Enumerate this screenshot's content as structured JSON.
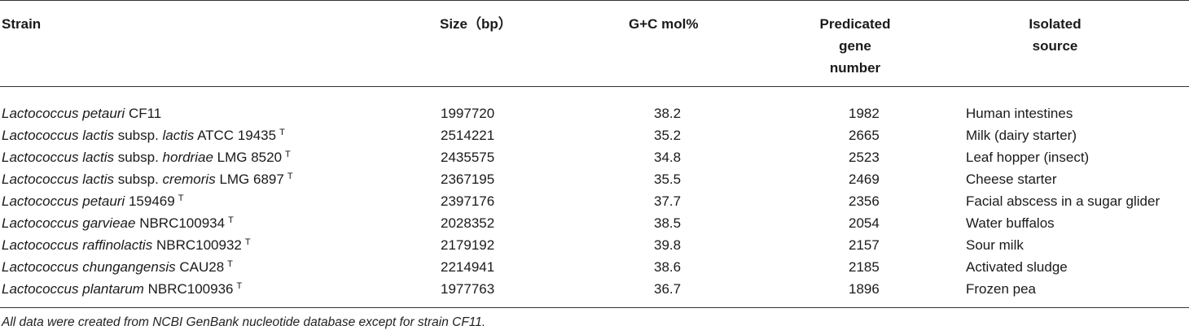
{
  "headers": {
    "strain": "Strain",
    "size": "Size（bp）",
    "gc": "G+C mol%",
    "gene_line1": "Predicated",
    "gene_line2": "gene",
    "gene_line3": "number",
    "source_line1": "Isolated",
    "source_line2": "source"
  },
  "rows": [
    {
      "genus": "Lactococcus",
      "species": "petauri",
      "subsp_prefix": "",
      "subsp": "",
      "strain_id": "CF11",
      "type_mark": "",
      "size": "1997720",
      "gc": "38.2",
      "genes": "1982",
      "source": "Human intestines"
    },
    {
      "genus": "Lactococcus",
      "species": "lactis",
      "subsp_prefix": "subsp.",
      "subsp": "lactis",
      "strain_id": "ATCC 19435",
      "type_mark": "T",
      "size": "2514221",
      "gc": "35.2",
      "genes": "2665",
      "source": "Milk (dairy starter)"
    },
    {
      "genus": "Lactococcus",
      "species": "lactis",
      "subsp_prefix": "subsp.",
      "subsp": "hordriae",
      "strain_id": "LMG 8520",
      "type_mark": "T",
      "size": "2435575",
      "gc": "34.8",
      "genes": "2523",
      "source": "Leaf hopper (insect)"
    },
    {
      "genus": "Lactococcus",
      "species": "lactis",
      "subsp_prefix": "subsp.",
      "subsp": "cremoris",
      "strain_id": "LMG 6897",
      "type_mark": "T",
      "size": "2367195",
      "gc": "35.5",
      "genes": "2469",
      "source": "Cheese starter"
    },
    {
      "genus": "Lactococcus",
      "species": "petauri",
      "subsp_prefix": "",
      "subsp": "",
      "strain_id": "159469",
      "type_mark": "T",
      "size": "2397176",
      "gc": "37.7",
      "genes": "2356",
      "source": "Facial abscess in a sugar glider"
    },
    {
      "genus": "Lactococcus",
      "species": "garvieae",
      "subsp_prefix": "",
      "subsp": "",
      "strain_id": "NBRC100934",
      "type_mark": "T",
      "size": "2028352",
      "gc": "38.5",
      "genes": "2054",
      "source": "Water buffalos"
    },
    {
      "genus": "Lactococcus",
      "species": "raffinolactis",
      "subsp_prefix": "",
      "subsp": "",
      "strain_id": "NBRC100932",
      "type_mark": "T",
      "size": "2179192",
      "gc": "39.8",
      "genes": "2157",
      "source": "Sour milk"
    },
    {
      "genus": "Lactococcus",
      "species": "chungangensis",
      "subsp_prefix": "",
      "subsp": "",
      "strain_id": "CAU28",
      "type_mark": "T",
      "size": "2214941",
      "gc": "38.6",
      "genes": "2185",
      "source": "Activated sludge"
    },
    {
      "genus": "Lactococcus",
      "species": "plantarum",
      "subsp_prefix": "",
      "subsp": "",
      "strain_id": "NBRC100936",
      "type_mark": "T",
      "size": "1977763",
      "gc": "36.7",
      "genes": "1896",
      "source": "Frozen pea"
    }
  ],
  "footnote": "All data were created from NCBI GenBank nucleotide database except for strain CF11."
}
